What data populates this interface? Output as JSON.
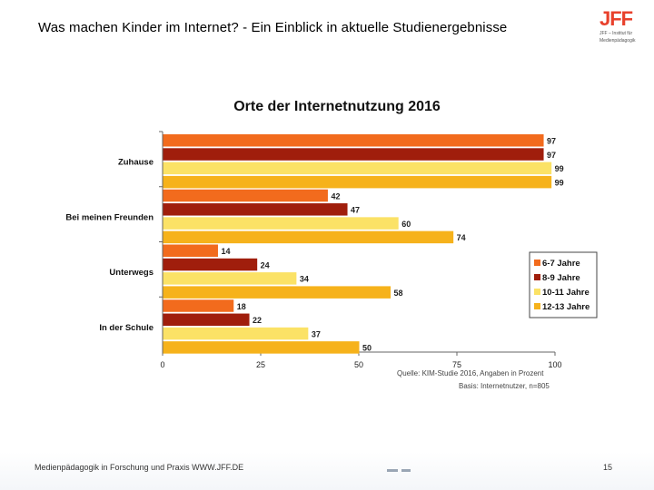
{
  "header": {
    "title_lead": "Was machen Kinder im Internet?",
    "title_rest": " - Ein Einblick in aktuelle Studienergebnisse",
    "logo_text": "JFF",
    "logo_subtitle_1": "JFF – Institut für",
    "logo_subtitle_2": "Medienpädagogik"
  },
  "footer": {
    "left_text": "Medienpädagogik in Forschung und Praxis WWW.JFF.DE",
    "page_number": "15"
  },
  "chart_data": {
    "type": "bar",
    "orientation": "horizontal",
    "title": "Orte der Internetnutzung 2016",
    "categories": [
      "Zuhause",
      "Bei meinen Freunden",
      "Unterwegs",
      "In der Schule"
    ],
    "series": [
      {
        "name": "6-7 Jahre",
        "color": "#f26b1d",
        "values": [
          97,
          42,
          14,
          18
        ]
      },
      {
        "name": "8-9 Jahre",
        "color": "#a01e0c",
        "values": [
          97,
          47,
          24,
          22
        ]
      },
      {
        "name": "10-11 Jahre",
        "color": "#fbe266",
        "values": [
          99,
          60,
          34,
          37
        ]
      },
      {
        "name": "12-13 Jahre",
        "color": "#f6b21b",
        "values": [
          99,
          74,
          58,
          50
        ]
      }
    ],
    "xlim": [
      0,
      100
    ],
    "xticks": [
      0,
      25,
      50,
      75,
      100
    ],
    "legend_position": "right",
    "source_line_1": "Quelle: KIM-Studie 2016, Angaben in Prozent",
    "source_line_2": "Basis: Internetnutzer, n=805"
  }
}
